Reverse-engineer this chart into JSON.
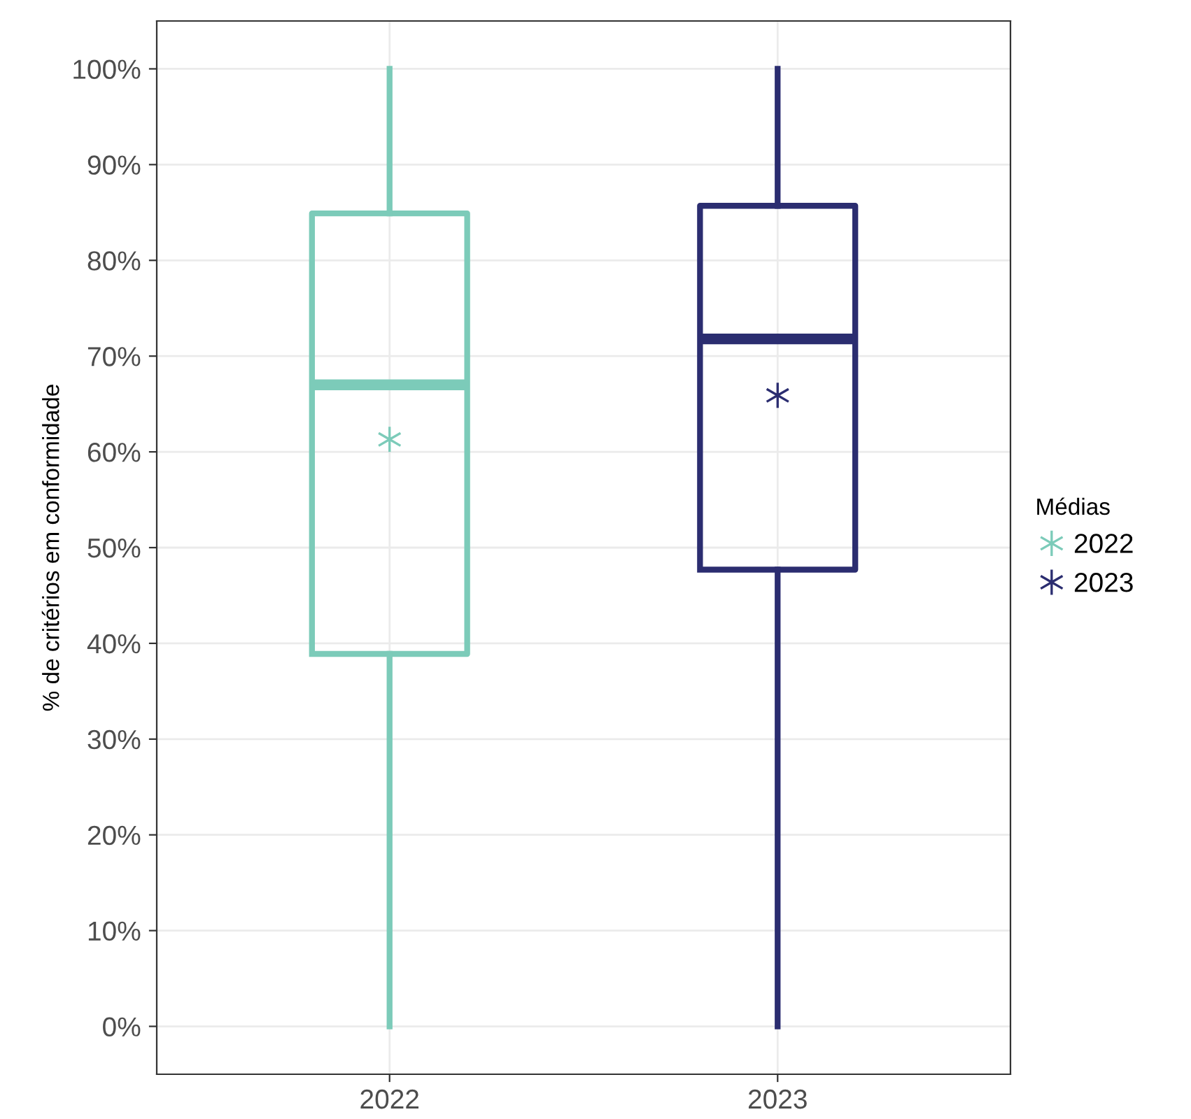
{
  "chart_data": {
    "type": "box",
    "categories": [
      "2022",
      "2023"
    ],
    "ylabel": "% de critérios em conformidade",
    "legend_title": "Médias",
    "legend": "right",
    "grid": true,
    "marker": "star",
    "series": [
      {
        "name": "2022",
        "color": "#7ccbb9",
        "boxes": [
          {
            "low": 0,
            "q1": 38.9,
            "median": 67,
            "q3": 84.9,
            "high": 100,
            "mean": 61.3
          },
          null
        ]
      },
      {
        "name": "2023",
        "color": "#2b2d70",
        "boxes": [
          null,
          {
            "low": 0,
            "q1": 47.7,
            "median": 71.8,
            "q3": 85.7,
            "high": 100,
            "mean": 65.9
          }
        ]
      }
    ],
    "ylim": [
      -5,
      105
    ],
    "yticks": [
      {
        "value": 0,
        "label": "0%"
      },
      {
        "value": 10,
        "label": "10%"
      },
      {
        "value": 20,
        "label": "20%"
      },
      {
        "value": 30,
        "label": "30%"
      },
      {
        "value": 40,
        "label": "40%"
      },
      {
        "value": 50,
        "label": "50%"
      },
      {
        "value": 60,
        "label": "60%"
      },
      {
        "value": 70,
        "label": "70%"
      },
      {
        "value": 80,
        "label": "80%"
      },
      {
        "value": 90,
        "label": "90%"
      },
      {
        "value": 100,
        "label": "100%"
      }
    ]
  }
}
